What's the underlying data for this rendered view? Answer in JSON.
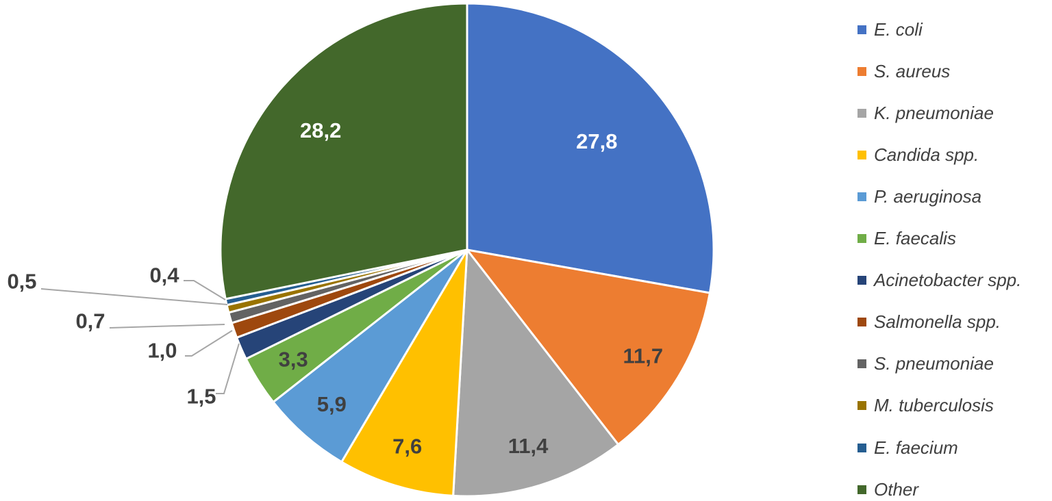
{
  "chart_data": {
    "type": "pie",
    "categories": [
      "E. coli",
      "S. aureus",
      "K. pneumoniae",
      "Candida spp.",
      "P. aeruginosa",
      "E. faecalis",
      "Acinetobacter spp.",
      "Salmonella spp.",
      "S. pneumoniae",
      "M. tuberculosis",
      "E. faecium",
      "Other"
    ],
    "values": [
      27.8,
      11.7,
      11.4,
      7.6,
      5.9,
      3.3,
      1.5,
      1.0,
      0.7,
      0.5,
      0.4,
      28.2
    ],
    "value_labels": [
      "27,8",
      "11,7",
      "11,4",
      "7,6",
      "5,9",
      "3,3",
      "1,5",
      "1,0",
      "0,7",
      "0,5",
      "0,4",
      "28,2"
    ],
    "colors": [
      "#4472C4",
      "#ED7D31",
      "#A5A5A5",
      "#FFC000",
      "#5B9BD5",
      "#70AD47",
      "#264478",
      "#9E480E",
      "#636363",
      "#997300",
      "#255E91",
      "#43682B"
    ],
    "label_colors": [
      "#FFFFFF",
      "#404040",
      "#404040",
      "#404040",
      "#404040",
      "#404040",
      "#404040",
      "#404040",
      "#404040",
      "#404040",
      "#404040",
      "#FFFFFF"
    ],
    "legend_position": "right",
    "title": ""
  }
}
